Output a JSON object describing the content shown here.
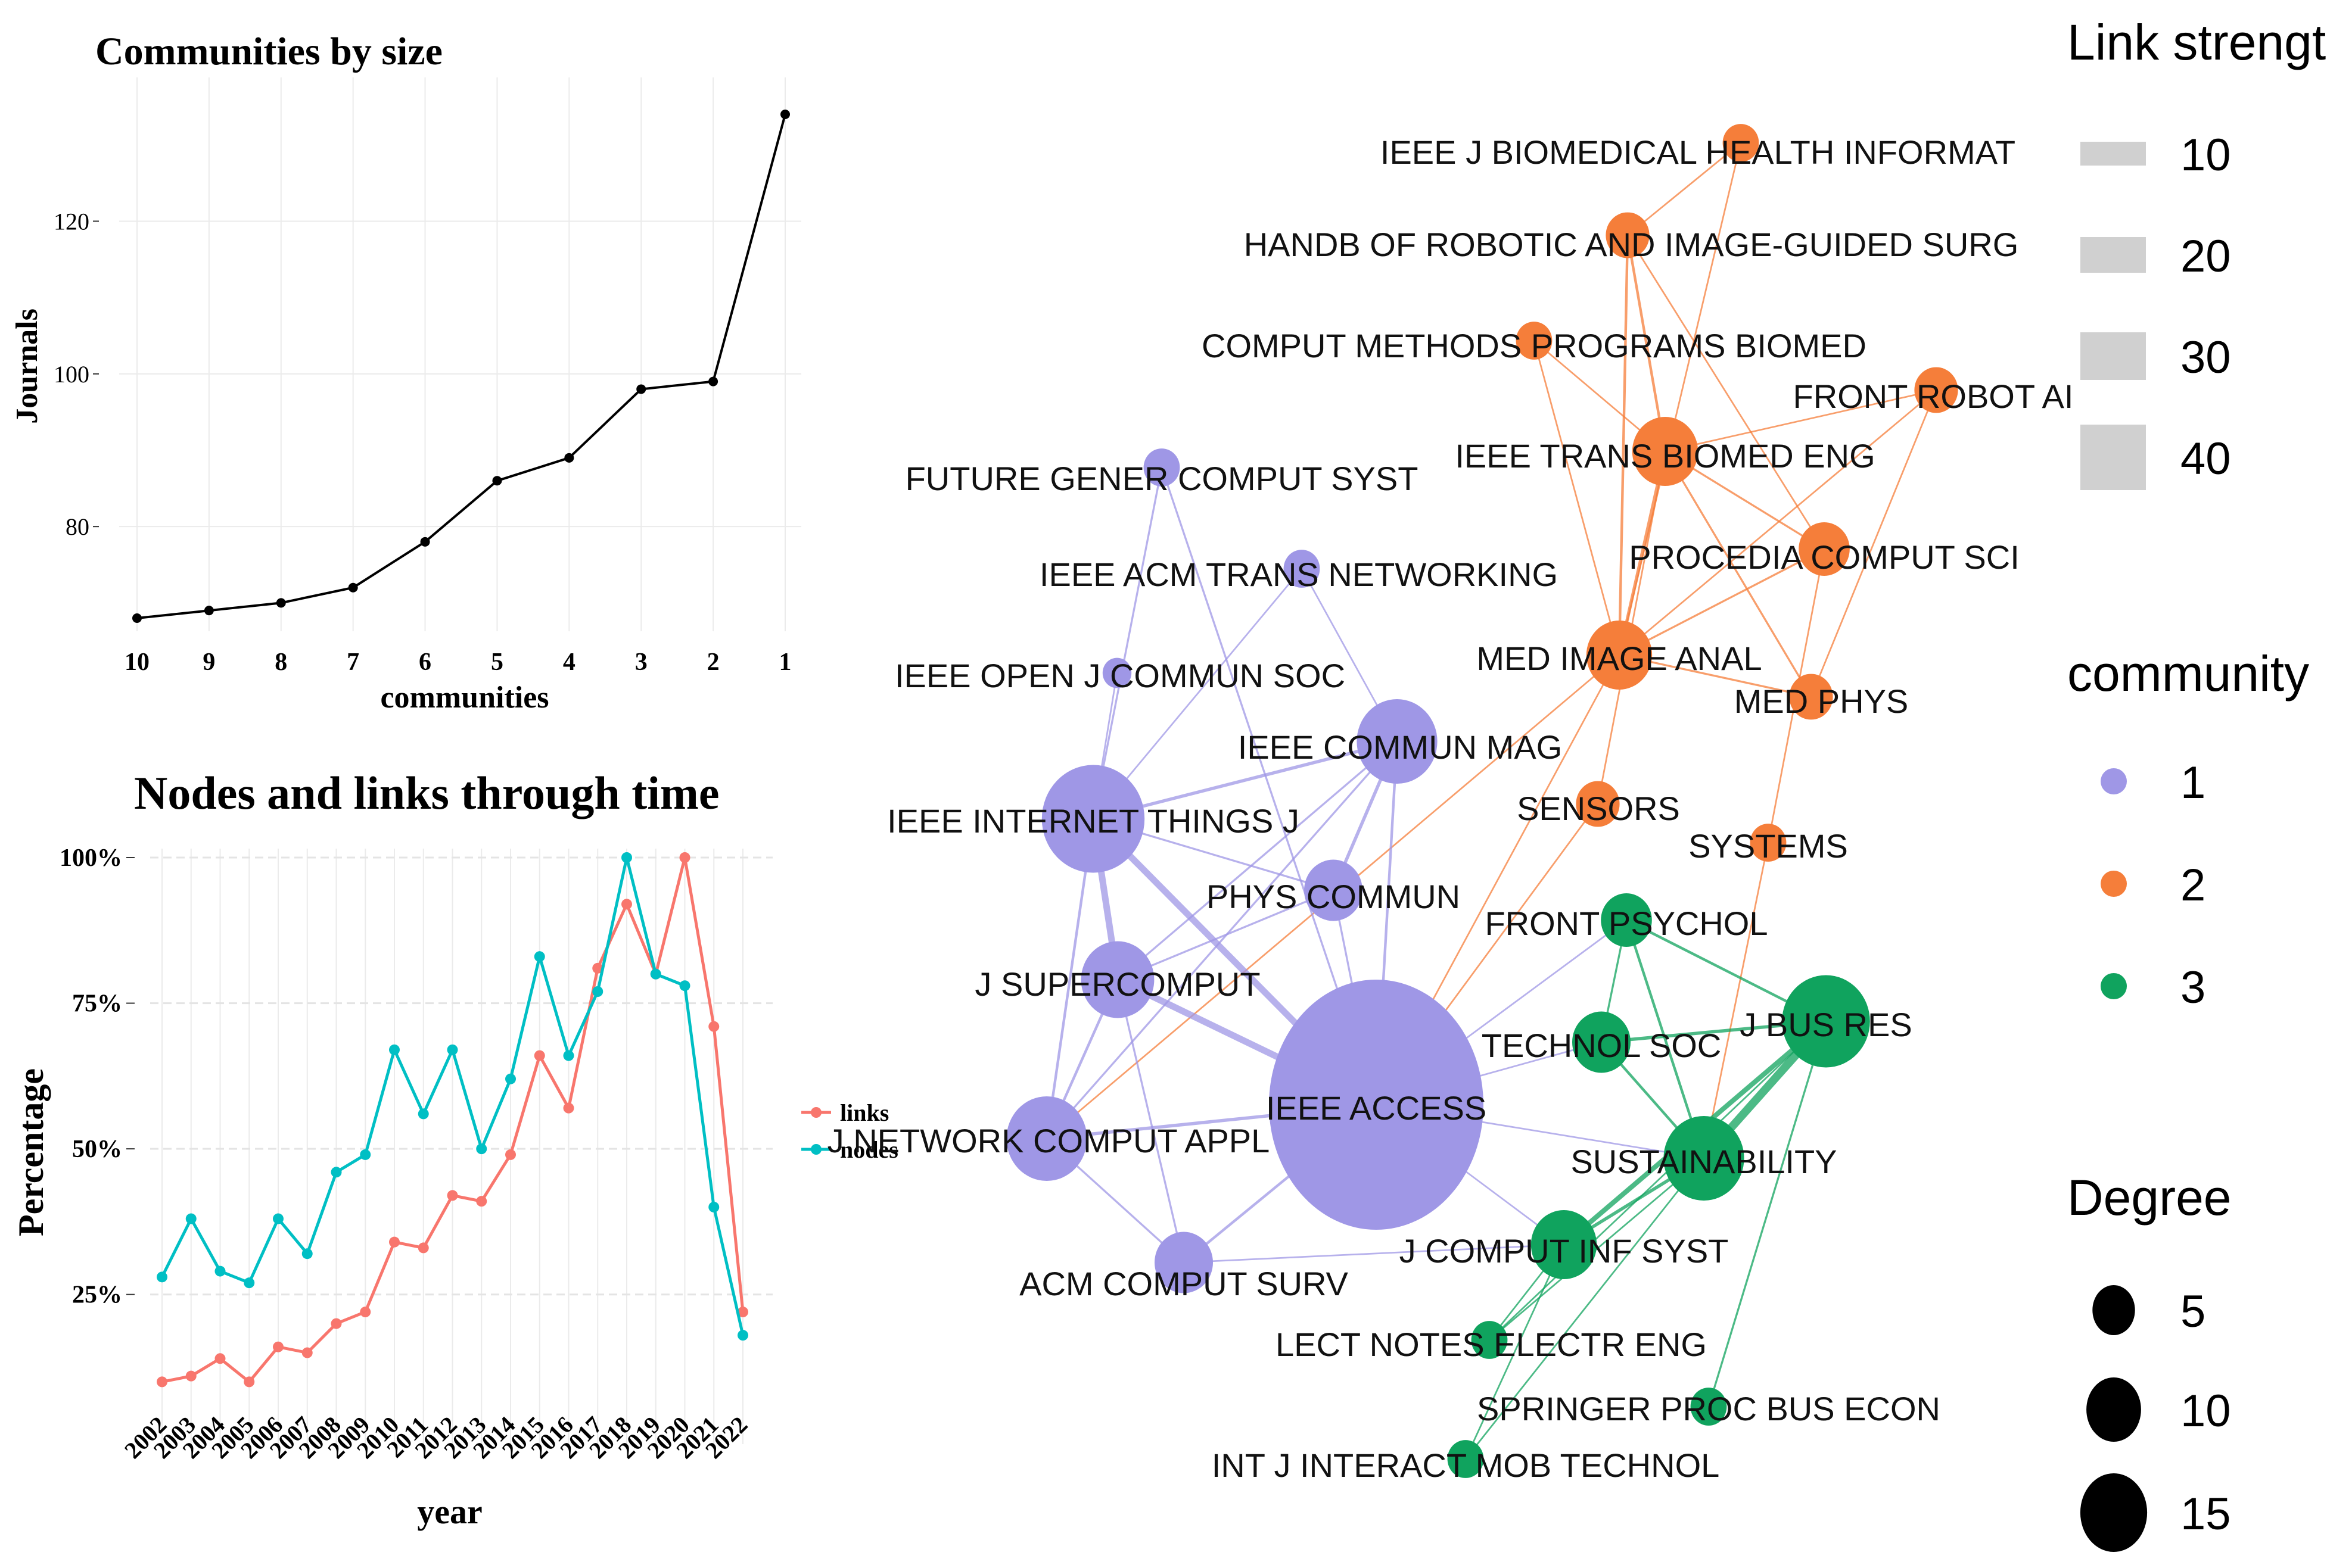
{
  "chart_data": [
    {
      "type": "line",
      "title": "Communities by size",
      "xlabel": "communities",
      "ylabel": "Journals",
      "categories": [
        "10",
        "9",
        "8",
        "7",
        "6",
        "5",
        "4",
        "3",
        "2",
        "1"
      ],
      "values": [
        68,
        69,
        70,
        72,
        78,
        86,
        89,
        98,
        99,
        134
      ],
      "yticks": [
        80,
        100,
        120
      ],
      "ylim": [
        68,
        134
      ],
      "colors": {
        "line": "#000000"
      }
    },
    {
      "type": "line",
      "title": "Nodes and links through time",
      "xlabel": "year",
      "ylabel": "Percentage",
      "categories": [
        "2002",
        "2003",
        "2004",
        "2005",
        "2006",
        "2007",
        "2008",
        "2009",
        "2010",
        "2011",
        "2012",
        "2013",
        "2014",
        "2015",
        "2016",
        "2017",
        "2018",
        "2019",
        "2020",
        "2021",
        "2022"
      ],
      "series": [
        {
          "name": "links",
          "color": "#F8766D",
          "values": [
            10,
            11,
            14,
            10,
            16,
            15,
            20,
            22,
            34,
            33,
            42,
            41,
            49,
            66,
            57,
            81,
            92,
            80,
            100,
            71,
            22
          ]
        },
        {
          "name": "nodes",
          "color": "#00BFC4",
          "values": [
            28,
            38,
            29,
            27,
            38,
            32,
            46,
            49,
            67,
            56,
            67,
            50,
            62,
            83,
            66,
            77,
            100,
            80,
            78,
            40,
            18
          ]
        }
      ],
      "yticks": [
        "25%",
        "50%",
        "75%",
        "100%"
      ],
      "ytick_values": [
        25,
        50,
        75,
        100
      ],
      "ylim": [
        8,
        100
      ],
      "legend": [
        "links",
        "nodes"
      ]
    },
    {
      "type": "network",
      "communities": [
        {
          "id": 1,
          "color": "#9F97E6"
        },
        {
          "id": 2,
          "color": "#F57E3A"
        },
        {
          "id": 3,
          "color": "#10A35E"
        }
      ],
      "nodes": [
        {
          "label": "IEEE J BIOMEDICAL HEALTH INFORMAT",
          "community": 2,
          "degree": 2
        },
        {
          "label": "HANDB OF ROBOTIC AND IMAGE-GUIDED SURG",
          "community": 2,
          "degree": 3
        },
        {
          "label": "COMPUT METHODS PROGRAMS BIOMED",
          "community": 2,
          "degree": 2
        },
        {
          "label": "FRONT ROBOT AI",
          "community": 2,
          "degree": 3
        },
        {
          "label": "IEEE TRANS BIOMED ENG",
          "community": 2,
          "degree": 6
        },
        {
          "label": "PROCEDIA COMPUT SCI",
          "community": 2,
          "degree": 4
        },
        {
          "label": "MED IMAGE ANAL",
          "community": 2,
          "degree": 6
        },
        {
          "label": "MED PHYS",
          "community": 2,
          "degree": 3
        },
        {
          "label": "SENSORS",
          "community": 2,
          "degree": 3
        },
        {
          "label": "SYSTEMS",
          "community": 2,
          "degree": 2
        },
        {
          "label": "FUTURE GENER COMPUT SYST",
          "community": 1,
          "degree": 2
        },
        {
          "label": "IEEE ACM TRANS NETWORKING",
          "community": 1,
          "degree": 2
        },
        {
          "label": "IEEE OPEN J COMMUN SOC",
          "community": 1,
          "degree": 1
        },
        {
          "label": "IEEE COMMUN MAG",
          "community": 1,
          "degree": 8
        },
        {
          "label": "IEEE INTERNET THINGS J",
          "community": 1,
          "degree": 11
        },
        {
          "label": "PHYS COMMUN",
          "community": 1,
          "degree": 5
        },
        {
          "label": "J SUPERCOMPUT",
          "community": 1,
          "degree": 7
        },
        {
          "label": "IEEE ACCESS",
          "community": 1,
          "degree": 18
        },
        {
          "label": "J NETWORK COMPUT APPL",
          "community": 1,
          "degree": 8
        },
        {
          "label": "ACM COMPUT SURV",
          "community": 1,
          "degree": 5
        },
        {
          "label": "FRONT PSYCHOL",
          "community": 3,
          "degree": 4
        },
        {
          "label": "J BUS RES",
          "community": 3,
          "degree": 9
        },
        {
          "label": "TECHNOL SOC",
          "community": 3,
          "degree": 5
        },
        {
          "label": "SUSTAINABILITY",
          "community": 3,
          "degree": 8
        },
        {
          "label": "J COMPUT INF SYST",
          "community": 3,
          "degree": 6
        },
        {
          "label": "LECT NOTES ELECTR ENG",
          "community": 3,
          "degree": 2
        },
        {
          "label": "SPRINGER PROC BUS ECON",
          "community": 3,
          "degree": 2
        },
        {
          "label": "INT J INTERACT MOB TECHNOL",
          "community": 3,
          "degree": 2
        }
      ],
      "edges": [
        [
          "IEEE J BIOMEDICAL HEALTH INFORMAT",
          "HANDB OF ROBOTIC AND IMAGE-GUIDED SURG",
          5
        ],
        [
          "IEEE J BIOMEDICAL HEALTH INFORMAT",
          "MED IMAGE ANAL",
          5
        ],
        [
          "HANDB OF ROBOTIC AND IMAGE-GUIDED SURG",
          "IEEE TRANS BIOMED ENG",
          8
        ],
        [
          "HANDB OF ROBOTIC AND IMAGE-GUIDED SURG",
          "MED IMAGE ANAL",
          8
        ],
        [
          "HANDB OF ROBOTIC AND IMAGE-GUIDED SURG",
          "PROCEDIA COMPUT SCI",
          5
        ],
        [
          "COMPUT METHODS PROGRAMS BIOMED",
          "IEEE TRANS BIOMED ENG",
          5
        ],
        [
          "COMPUT METHODS PROGRAMS BIOMED",
          "MED IMAGE ANAL",
          5
        ],
        [
          "FRONT ROBOT AI",
          "IEEE TRANS BIOMED ENG",
          5
        ],
        [
          "FRONT ROBOT AI",
          "MED IMAGE ANAL",
          5
        ],
        [
          "FRONT ROBOT AI",
          "MED PHYS",
          5
        ],
        [
          "IEEE TRANS BIOMED ENG",
          "MED IMAGE ANAL",
          10
        ],
        [
          "IEEE TRANS BIOMED ENG",
          "PROCEDIA COMPUT SCI",
          6
        ],
        [
          "IEEE TRANS BIOMED ENG",
          "MED PHYS",
          6
        ],
        [
          "IEEE TRANS BIOMED ENG",
          "SENSORS",
          5
        ],
        [
          "PROCEDIA COMPUT SCI",
          "MED IMAGE ANAL",
          6
        ],
        [
          "PROCEDIA COMPUT SCI",
          "SYSTEMS",
          5
        ],
        [
          "MED IMAGE ANAL",
          "MED PHYS",
          6
        ],
        [
          "MED IMAGE ANAL",
          "IEEE ACCESS",
          5
        ],
        [
          "MED IMAGE ANAL",
          "J NETWORK COMPUT APPL",
          5
        ],
        [
          "SENSORS",
          "IEEE ACCESS",
          5
        ],
        [
          "SYSTEMS",
          "SUSTAINABILITY",
          5
        ],
        [
          "FUTURE GENER COMPUT SYST",
          "IEEE INTERNET THINGS J",
          6
        ],
        [
          "FUTURE GENER COMPUT SYST",
          "IEEE ACCESS",
          6
        ],
        [
          "IEEE ACM TRANS NETWORKING",
          "IEEE INTERNET THINGS J",
          5
        ],
        [
          "IEEE ACM TRANS NETWORKING",
          "IEEE COMMUN MAG",
          5
        ],
        [
          "IEEE OPEN J COMMUN SOC",
          "IEEE INTERNET THINGS J",
          5
        ],
        [
          "IEEE COMMUN MAG",
          "IEEE INTERNET THINGS J",
          10
        ],
        [
          "IEEE COMMUN MAG",
          "PHYS COMMUN",
          10
        ],
        [
          "IEEE COMMUN MAG",
          "J SUPERCOMPUT",
          6
        ],
        [
          "IEEE COMMUN MAG",
          "IEEE ACCESS",
          8
        ],
        [
          "IEEE COMMUN MAG",
          "J NETWORK COMPUT APPL",
          6
        ],
        [
          "IEEE INTERNET THINGS J",
          "PHYS COMMUN",
          6
        ],
        [
          "IEEE INTERNET THINGS J",
          "J SUPERCOMPUT",
          20
        ],
        [
          "IEEE INTERNET THINGS J",
          "IEEE ACCESS",
          20
        ],
        [
          "IEEE INTERNET THINGS J",
          "J NETWORK COMPUT APPL",
          8
        ],
        [
          "PHYS COMMUN",
          "J SUPERCOMPUT",
          6
        ],
        [
          "PHYS COMMUN",
          "IEEE ACCESS",
          6
        ],
        [
          "J SUPERCOMPUT",
          "IEEE ACCESS",
          20
        ],
        [
          "J SUPERCOMPUT",
          "J NETWORK COMPUT APPL",
          8
        ],
        [
          "J SUPERCOMPUT",
          "ACM COMPUT SURV",
          6
        ],
        [
          "IEEE ACCESS",
          "J NETWORK COMPUT APPL",
          10
        ],
        [
          "IEEE ACCESS",
          "ACM COMPUT SURV",
          8
        ],
        [
          "IEEE ACCESS",
          "FRONT PSYCHOL",
          5
        ],
        [
          "IEEE ACCESS",
          "TECHNOL SOC",
          5
        ],
        [
          "IEEE ACCESS",
          "SUSTAINABILITY",
          5
        ],
        [
          "IEEE ACCESS",
          "J COMPUT INF SYST",
          5
        ],
        [
          "J NETWORK COMPUT APPL",
          "ACM COMPUT SURV",
          6
        ],
        [
          "ACM COMPUT SURV",
          "J COMPUT INF SYST",
          5
        ],
        [
          "FRONT PSYCHOL",
          "J BUS RES",
          8
        ],
        [
          "FRONT PSYCHOL",
          "SUSTAINABILITY",
          8
        ],
        [
          "FRONT PSYCHOL",
          "TECHNOL SOC",
          6
        ],
        [
          "J BUS RES",
          "TECHNOL SOC",
          10
        ],
        [
          "J BUS RES",
          "SUSTAINABILITY",
          25
        ],
        [
          "J BUS RES",
          "J COMPUT INF SYST",
          15
        ],
        [
          "J BUS RES",
          "SPRINGER PROC BUS ECON",
          6
        ],
        [
          "J BUS RES",
          "LECT NOTES ELECTR ENG",
          5
        ],
        [
          "TECHNOL SOC",
          "SUSTAINABILITY",
          8
        ],
        [
          "SUSTAINABILITY",
          "J COMPUT INF SYST",
          10
        ],
        [
          "SUSTAINABILITY",
          "INT J INTERACT MOB TECHNOL",
          5
        ],
        [
          "SUSTAINABILITY",
          "LECT NOTES ELECTR ENG",
          5
        ],
        [
          "J COMPUT INF SYST",
          "LECT NOTES ELECTR ENG",
          5
        ],
        [
          "J COMPUT INF SYST",
          "INT J INTERACT MOB TECHNOL",
          5
        ]
      ],
      "legend_link_strength": {
        "title": "Link strength",
        "values": [
          "10",
          "20",
          "30",
          "40"
        ]
      },
      "legend_community": {
        "title": "community",
        "values": [
          "1",
          "2",
          "3"
        ]
      },
      "legend_degree": {
        "title": "Degree",
        "values": [
          "5",
          "10",
          "15"
        ]
      }
    }
  ]
}
